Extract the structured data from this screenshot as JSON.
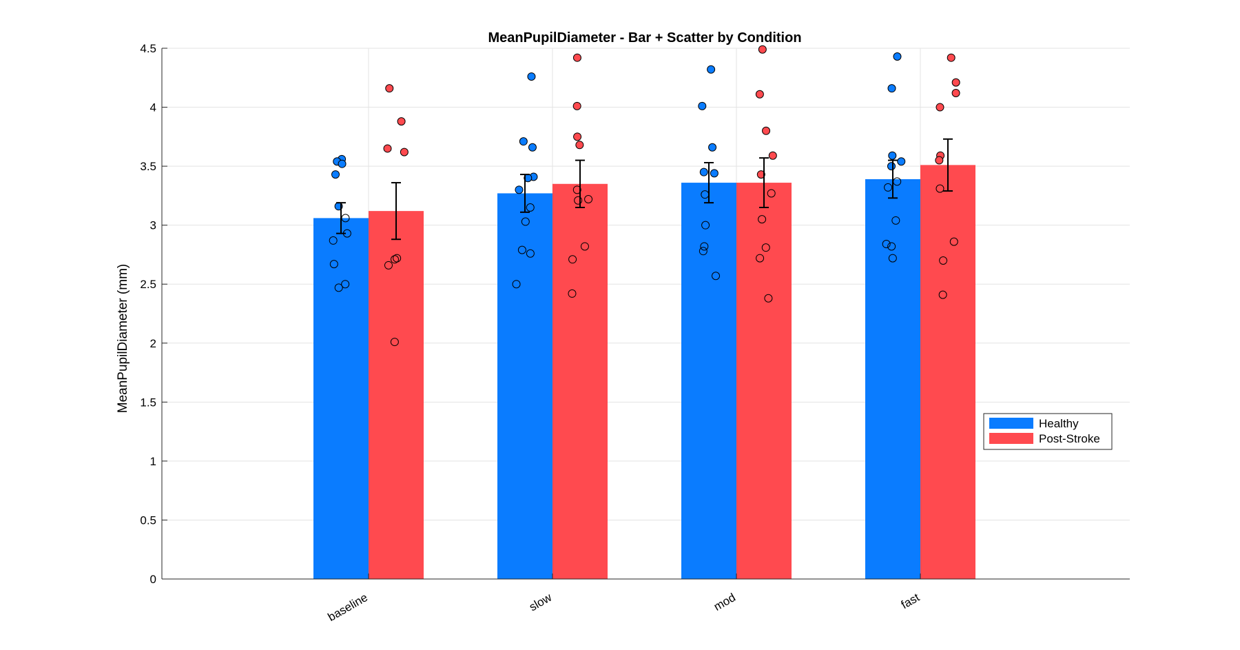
{
  "chart_data": {
    "type": "bar",
    "title": "MeanPupilDiameter - Bar + Scatter by Condition",
    "xlabel": "",
    "ylabel": "MeanPupilDiameter (mm)",
    "ylim": [
      0,
      4.5
    ],
    "yticks": [
      0,
      0.5,
      1,
      1.5,
      2,
      2.5,
      3,
      3.5,
      4,
      4.5
    ],
    "ytick_labels": [
      "0",
      "0.5",
      "1",
      "1.5",
      "2",
      "2.5",
      "3",
      "3.5",
      "4",
      "4.5"
    ],
    "categories": [
      "baseline",
      "slow",
      "mod",
      "fast"
    ],
    "grid": true,
    "legend_position": "right",
    "series": [
      {
        "name": "Healthy",
        "color": "#0a7cff",
        "values": [
          3.06,
          3.27,
          3.36,
          3.39
        ],
        "error": [
          0.13,
          0.16,
          0.17,
          0.16
        ],
        "points": [
          [
            3.56,
            3.54,
            3.52,
            3.43,
            3.16,
            3.06,
            2.93,
            2.87,
            2.67,
            2.5,
            2.47
          ],
          [
            4.26,
            3.71,
            3.66,
            3.41,
            3.4,
            3.3,
            3.15,
            3.03,
            2.79,
            2.76,
            2.5
          ],
          [
            4.32,
            4.01,
            3.66,
            3.45,
            3.44,
            3.26,
            3.0,
            2.82,
            2.78,
            2.57
          ],
          [
            4.43,
            4.16,
            3.59,
            3.54,
            3.5,
            3.37,
            3.32,
            3.04,
            2.84,
            2.82,
            2.72
          ]
        ]
      },
      {
        "name": "Post-Stroke",
        "color": "#ff4a4f",
        "values": [
          3.12,
          3.35,
          3.36,
          3.51
        ],
        "error": [
          0.24,
          0.2,
          0.21,
          0.22
        ],
        "points": [
          [
            4.16,
            3.88,
            3.65,
            3.62,
            2.72,
            2.71,
            2.66,
            2.01
          ],
          [
            4.42,
            4.01,
            3.75,
            3.68,
            3.3,
            3.22,
            3.21,
            2.82,
            2.71,
            2.42
          ],
          [
            4.49,
            4.11,
            3.8,
            3.59,
            3.43,
            3.27,
            3.05,
            2.81,
            2.72,
            2.38
          ],
          [
            4.42,
            4.21,
            4.12,
            4.0,
            3.59,
            3.55,
            3.31,
            2.86,
            2.7,
            2.41
          ]
        ]
      }
    ]
  }
}
